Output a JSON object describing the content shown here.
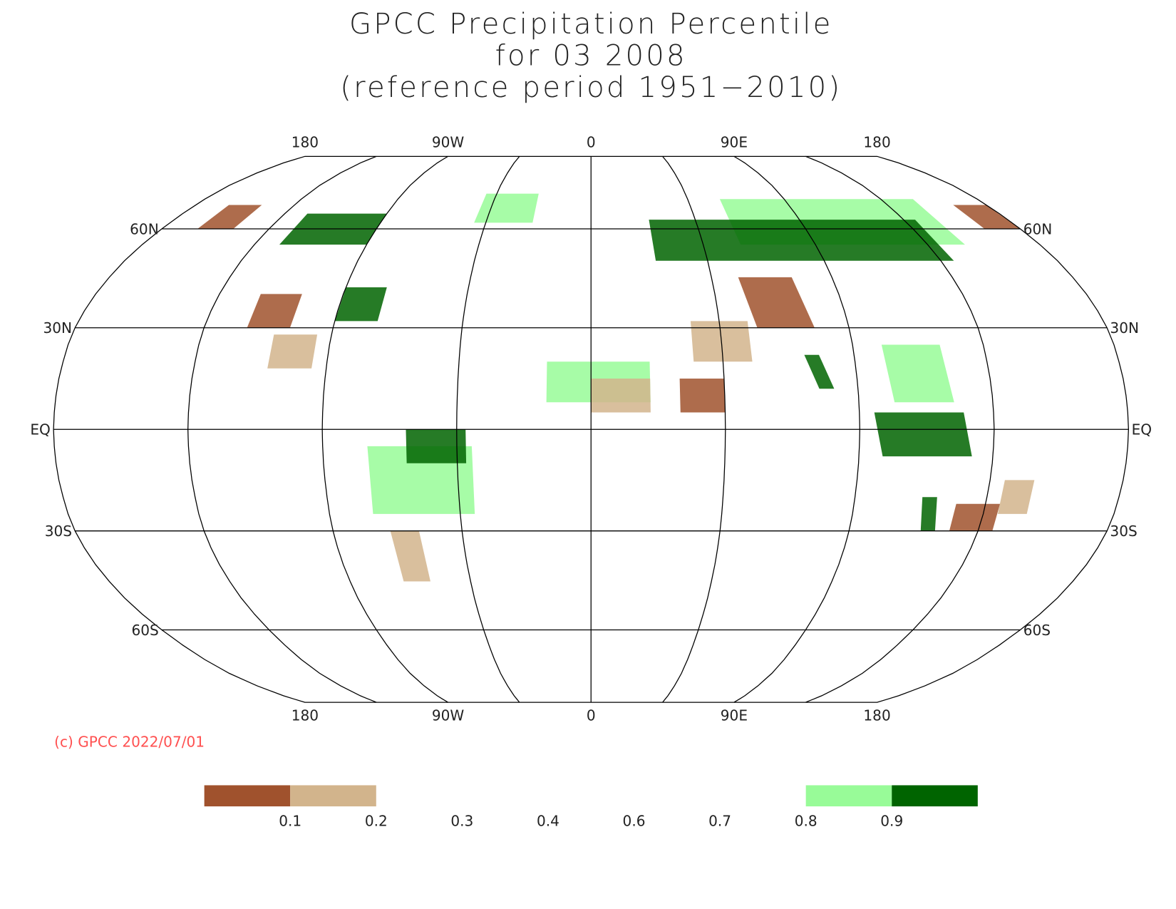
{
  "title_lines": [
    "GPCC Precipitation Percentile",
    "for 03 2008",
    "(reference period 1951−2010)"
  ],
  "lon_labels": [
    "180",
    "90W",
    "0",
    "90E",
    "180"
  ],
  "lat_labels": [
    "60N",
    "30N",
    "EQ",
    "30S",
    "60S"
  ],
  "copyright": "(c) GPCC 2022/07/01",
  "colorbar": {
    "ticks": [
      0.1,
      0.2,
      0.3,
      0.4,
      0.6,
      0.7,
      0.8,
      0.9
    ],
    "colors": [
      "#a0522d",
      "#d2b48c",
      null,
      null,
      null,
      null,
      null,
      "#98fb98",
      "#006400"
    ]
  }
}
